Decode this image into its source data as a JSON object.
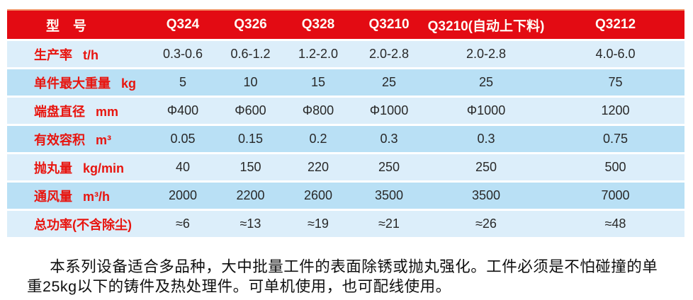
{
  "theme": {
    "header_bg": "#e30b13",
    "header_top_line": "#f29468",
    "header_text": "#fffdf6",
    "row_light": "#dceefa",
    "row_medium": "#b9e0f5",
    "label_color": "#e8150f",
    "value_color": "#282828",
    "paragraph_color": "#0f0f0f",
    "page_bg": "#ffffff"
  },
  "spec_table": {
    "header": {
      "label": "型　号",
      "models": [
        "Q324",
        "Q326",
        "Q328",
        "Q3210",
        "Q3210(自动上下料)",
        "Q3212"
      ]
    },
    "rows": [
      {
        "label": "生产率",
        "unit": "t/h",
        "values": [
          "0.3-0.6",
          "0.6-1.2",
          "1.2-2.0",
          "2.0-2.8",
          "2.0-2.8",
          "4.0-6.0"
        ]
      },
      {
        "label": "单件最大重量",
        "unit": "kg",
        "values": [
          "5",
          "10",
          "15",
          "25",
          "25",
          "75"
        ]
      },
      {
        "label": "端盘直径",
        "unit": "mm",
        "values": [
          "Φ400",
          "Φ600",
          "Φ800",
          "Φ1000",
          "Φ1000",
          "1200"
        ]
      },
      {
        "label": "有效容积",
        "unit": "m³",
        "values": [
          "0.05",
          "0.15",
          "0.2",
          "0.3",
          "0.3",
          "0.75"
        ]
      },
      {
        "label": "抛丸量",
        "unit": "kg/min",
        "values": [
          "40",
          "150",
          "220",
          "250",
          "250",
          "500"
        ]
      },
      {
        "label": "通风量",
        "unit": "m³/h",
        "values": [
          "2000",
          "2200",
          "2600",
          "3500",
          "3500",
          "7000"
        ]
      },
      {
        "label": "总功率(不含除尘)",
        "unit": "",
        "values": [
          "≈6",
          "≈13",
          "≈19",
          "≈21",
          "≈26",
          "≈48"
        ]
      }
    ]
  },
  "description": {
    "text": "本系列设备适合多品种，大中批量工件的表面除锈或抛丸强化。工件必须是不怕碰撞的单重25kg以下的铸件及热处理件。可单机使用，也可配线使用。"
  }
}
